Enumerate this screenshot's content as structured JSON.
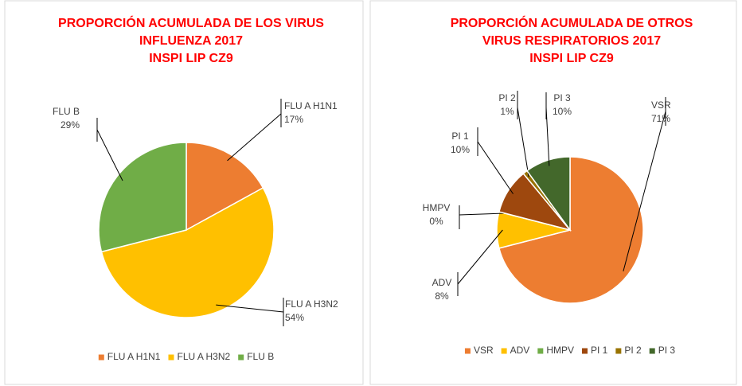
{
  "chart_data": [
    {
      "type": "pie",
      "title": [
        "PROPORCIÓN ACUMULADA DE LOS VIRUS",
        "INFLUENZA 2017",
        "INSPI LIP CZ9"
      ],
      "categories": [
        "FLU A H1N1",
        "FLU A H3N2",
        "FLU B"
      ],
      "values": [
        17,
        54,
        29
      ],
      "value_labels": [
        "17%",
        "54%",
        "29%"
      ],
      "colors": [
        "#ed7d31",
        "#ffc000",
        "#70ad47"
      ],
      "legend": "bottom"
    },
    {
      "type": "pie",
      "title": [
        "PROPORCIÓN ACUMULADA DE OTROS",
        "VIRUS RESPIRATORIOS 2017",
        "INSPI LIP CZ9"
      ],
      "categories": [
        "VSR",
        "ADV",
        "HMPV",
        "PI 1",
        "PI 2",
        "PI 3"
      ],
      "values": [
        71,
        8,
        0,
        10,
        1,
        10
      ],
      "value_labels": [
        "71%",
        "8%",
        "0%",
        "10%",
        "1%",
        "10%"
      ],
      "colors": [
        "#ed7d31",
        "#ffc000",
        "#70ad47",
        "#9e480e",
        "#997300",
        "#43682b"
      ],
      "legend": "bottom"
    }
  ]
}
